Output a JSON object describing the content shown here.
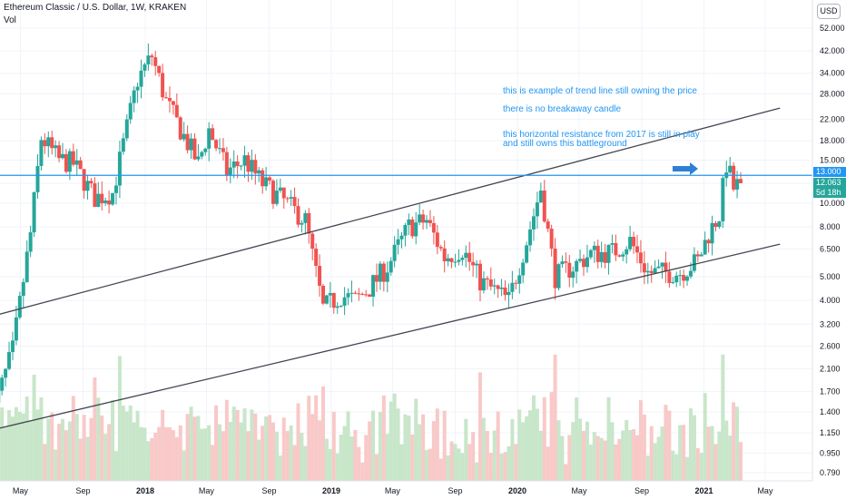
{
  "header": {
    "title": "Ethereum Classic / U.S. Dollar, 1W, KRAKEN",
    "volume_label": "Vol",
    "currency": "USD"
  },
  "annotations": [
    "this is example of trend line still owning the price",
    "there is no breakaway candle",
    "this horizontal resistance from 2017 is still in play",
    "and still owns this battleground"
  ],
  "price_tags": {
    "resistance": "13.000",
    "last": "12.063",
    "countdown": "5d 18h"
  },
  "colors": {
    "up": "#26a69a",
    "down": "#ef5350",
    "vol_up": "#c8e6c9",
    "vol_down": "#f8c9c8",
    "resistance": "#2196f3",
    "trend": "#434651",
    "axis_text": "#131722"
  },
  "chart_data": {
    "type": "candlestick",
    "y_scale": "log",
    "y_ticks": [
      "52.000",
      "42.000",
      "34.000",
      "28.000",
      "22.000",
      "18.000",
      "15.000",
      "12.063",
      "10.000",
      "8.000",
      "6.500",
      "5.000",
      "4.000",
      "3.200",
      "2.600",
      "2.100",
      "1.700",
      "1.400",
      "1.150",
      "0.950",
      "0.790"
    ],
    "x_ticks": [
      "May",
      "Sep",
      "2018",
      "May",
      "Sep",
      "2019",
      "May",
      "Sep",
      "2020",
      "May",
      "Sep",
      "2021",
      "May"
    ],
    "horizontal_resistance": 13.0,
    "last_price": 12.063,
    "waypoints": [
      {
        "date": "2017-03-05",
        "price": 1.3
      },
      {
        "date": "2017-04-16",
        "price": 2.5
      },
      {
        "date": "2017-05-21",
        "price": 7.5
      },
      {
        "date": "2017-06-11",
        "price": 18.5
      },
      {
        "date": "2017-07-16",
        "price": 15.0
      },
      {
        "date": "2017-08-13",
        "price": 14.5
      },
      {
        "date": "2017-09-24",
        "price": 10.5
      },
      {
        "date": "2017-10-29",
        "price": 11.0
      },
      {
        "date": "2017-12-17",
        "price": 32.0
      },
      {
        "date": "2018-01-14",
        "price": 40.0
      },
      {
        "date": "2018-02-11",
        "price": 26.0
      },
      {
        "date": "2018-03-11",
        "price": 20.0
      },
      {
        "date": "2018-04-15",
        "price": 14.5
      },
      {
        "date": "2018-05-06",
        "price": 20.0
      },
      {
        "date": "2018-06-10",
        "price": 13.5
      },
      {
        "date": "2018-07-15",
        "price": 15.0
      },
      {
        "date": "2018-08-19",
        "price": 12.0
      },
      {
        "date": "2018-09-23",
        "price": 10.5
      },
      {
        "date": "2018-11-11",
        "price": 8.5
      },
      {
        "date": "2018-12-16",
        "price": 3.7
      },
      {
        "date": "2019-01-20",
        "price": 4.2
      },
      {
        "date": "2019-02-17",
        "price": 4.0
      },
      {
        "date": "2019-03-17",
        "price": 4.5
      },
      {
        "date": "2019-04-21",
        "price": 5.5
      },
      {
        "date": "2019-06-02",
        "price": 8.0
      },
      {
        "date": "2019-07-07",
        "price": 8.5
      },
      {
        "date": "2019-08-11",
        "price": 6.0
      },
      {
        "date": "2019-09-15",
        "price": 6.5
      },
      {
        "date": "2019-10-20",
        "price": 4.8
      },
      {
        "date": "2019-12-15",
        "price": 4.0
      },
      {
        "date": "2020-01-19",
        "price": 7.0
      },
      {
        "date": "2020-02-16",
        "price": 11.5
      },
      {
        "date": "2020-03-15",
        "price": 5.0
      },
      {
        "date": "2020-04-19",
        "price": 5.5
      },
      {
        "date": "2020-05-24",
        "price": 6.2
      },
      {
        "date": "2020-07-05",
        "price": 6.3
      },
      {
        "date": "2020-08-09",
        "price": 7.0
      },
      {
        "date": "2020-09-13",
        "price": 5.2
      },
      {
        "date": "2020-11-15",
        "price": 5.2
      },
      {
        "date": "2020-12-20",
        "price": 5.8
      },
      {
        "date": "2021-01-10",
        "price": 7.5
      },
      {
        "date": "2021-01-31",
        "price": 9.0
      },
      {
        "date": "2021-02-14",
        "price": 14.5
      },
      {
        "date": "2021-02-28",
        "price": 11.5
      },
      {
        "date": "2021-03-14",
        "price": 12.063
      }
    ],
    "trend_lines": [
      {
        "points": [
          {
            "date": "2016-12-25",
            "price": 3.15
          },
          {
            "date": "2021-05-30",
            "price": 24.5
          }
        ]
      },
      {
        "points": [
          {
            "date": "2016-12-25",
            "price": 1.09
          },
          {
            "date": "2021-05-30",
            "price": 6.8
          }
        ]
      }
    ]
  }
}
